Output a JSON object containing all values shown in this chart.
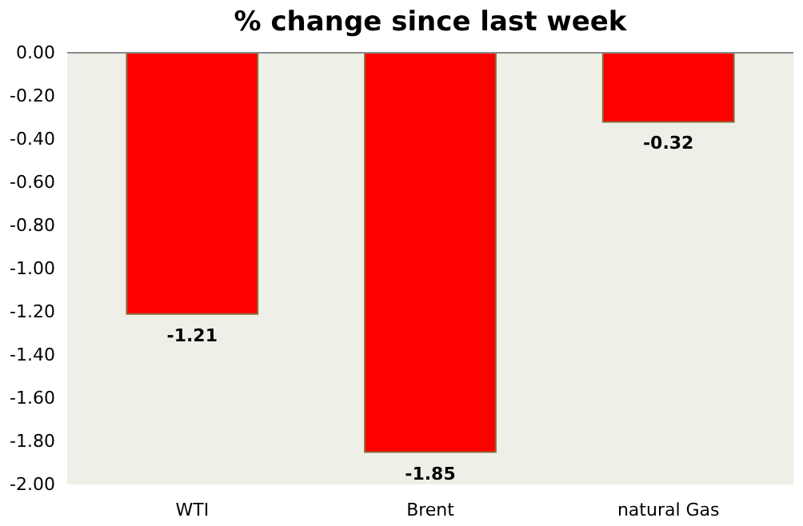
{
  "chart_data": {
    "type": "bar",
    "title": "% change since last week",
    "categories": [
      "WTI",
      "Brent",
      "natural Gas"
    ],
    "values": [
      -1.21,
      -1.85,
      -0.32
    ],
    "color": "#ff0000",
    "ylim": [
      -2,
      0
    ],
    "yticks": [
      {
        "value": 0,
        "label": "0.00"
      },
      {
        "value": -0.2,
        "label": "-0.20"
      },
      {
        "value": -0.4,
        "label": "-0.40"
      },
      {
        "value": -0.6,
        "label": "-0.60"
      },
      {
        "value": -0.8,
        "label": "-0.80"
      },
      {
        "value": -1.0,
        "label": "-1.00"
      },
      {
        "value": -1.2,
        "label": "-1.20"
      },
      {
        "value": -1.4,
        "label": "-1.40"
      },
      {
        "value": -1.6,
        "label": "-1.60"
      },
      {
        "value": -1.8,
        "label": "-1.80"
      },
      {
        "value": -2.0,
        "label": "-2.00"
      }
    ],
    "data_labels": true,
    "grid": false
  }
}
